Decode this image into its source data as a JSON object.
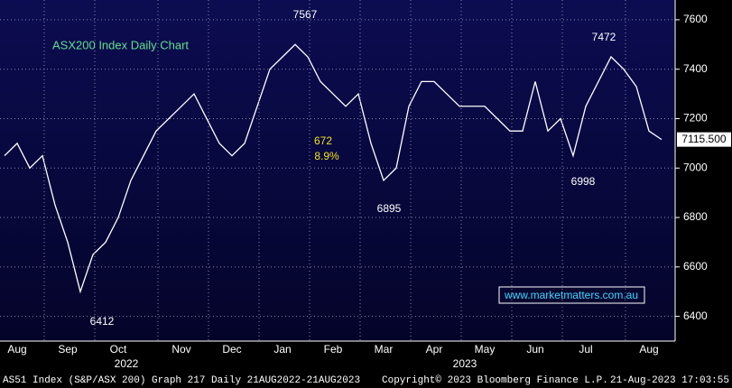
{
  "chart_data": {
    "type": "line",
    "title": "ASX200 Index Daily Chart",
    "categories": [
      null,
      "Aug",
      null,
      null,
      null,
      "Sep",
      null,
      null,
      null,
      "Oct",
      null,
      null,
      null,
      null,
      "Nov",
      null,
      null,
      null,
      "Dec",
      null,
      null,
      null,
      "Jan",
      null,
      null,
      null,
      "Feb",
      null,
      null,
      null,
      "Mar",
      null,
      null,
      null,
      "Apr",
      null,
      null,
      null,
      "May",
      null,
      null,
      null,
      "Jun",
      null,
      null,
      null,
      "Jul",
      null,
      null,
      null,
      null,
      "Aug",
      null
    ],
    "values": [
      7050,
      7100,
      7000,
      7050,
      6850,
      6700,
      6500,
      6650,
      6700,
      6800,
      6950,
      7050,
      7150,
      7200,
      7250,
      7300,
      7200,
      7100,
      7050,
      7100,
      7250,
      7400,
      7450,
      7500,
      7450,
      7350,
      7300,
      7250,
      7300,
      7100,
      6950,
      7000,
      7250,
      7350,
      7350,
      7300,
      7250,
      7250,
      7250,
      7200,
      7150,
      7150,
      7350,
      7150,
      7200,
      7050,
      7250,
      7350,
      7450,
      7400,
      7330,
      7150,
      7115.5
    ],
    "color": "#ffffff",
    "ylim": [
      6300,
      7680
    ],
    "yticks": [
      6400,
      6600,
      6800,
      7000,
      7200,
      7400,
      7600
    ],
    "grid": true,
    "price_tag": {
      "value": 7115.5,
      "label": "7115.500"
    },
    "year_labels": [
      "2022",
      "2023"
    ],
    "annotations": [
      "7567",
      "6412",
      "6895",
      "7472",
      "6998",
      "672",
      "8.9%"
    ],
    "website": "www.marketmatters.com.au",
    "footer": {
      "left": "AS51 Index (S&P/ASX 200) Graph 217  Daily 21AUG2022-21AUG2023",
      "middle": "Copyright© 2023 Bloomberg Finance L.P.",
      "right": "21-Aug-2023 17:03:55"
    }
  }
}
